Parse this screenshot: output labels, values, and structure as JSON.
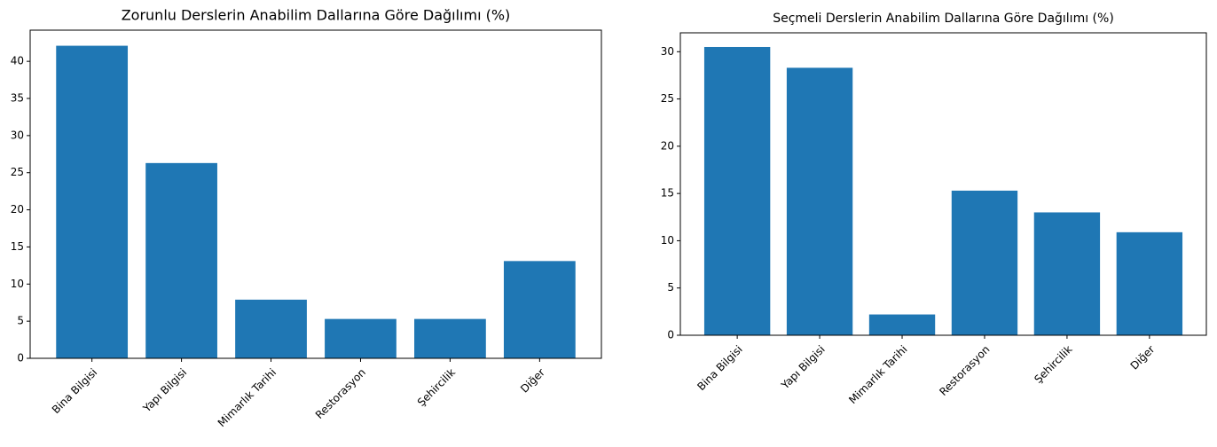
{
  "chart_data": [
    {
      "type": "bar",
      "title": "Zorunlu Derslerin Anabilim Dallarına Göre Dağılımı (%)",
      "categories": [
        "Bina Bilgisi",
        "Yapı Bilgisi",
        "Mimarlık Tarihi",
        "Restorasyon",
        "Şehircilik",
        "Diğer"
      ],
      "values": [
        42.1,
        26.3,
        7.9,
        5.3,
        5.3,
        13.1
      ],
      "color": "#1f77b4",
      "ylim": [
        0,
        44.2
      ],
      "yticks": [
        0,
        5,
        10,
        15,
        20,
        25,
        30,
        35,
        40
      ]
    },
    {
      "type": "bar",
      "title": "Seçmeli Derslerin Anabilim Dallarına Göre Dağılımı (%)",
      "categories": [
        "Bina Bilgisi",
        "Yapı Bilgisi",
        "Mimarlık Tarihi",
        "Restorasyon",
        "Şehircilik",
        "Diğer"
      ],
      "values": [
        30.5,
        28.3,
        2.2,
        15.3,
        13.0,
        10.9
      ],
      "color": "#1f77b4",
      "ylim": [
        0,
        32.0
      ],
      "yticks": [
        0,
        5,
        10,
        15,
        20,
        25,
        30
      ]
    }
  ]
}
